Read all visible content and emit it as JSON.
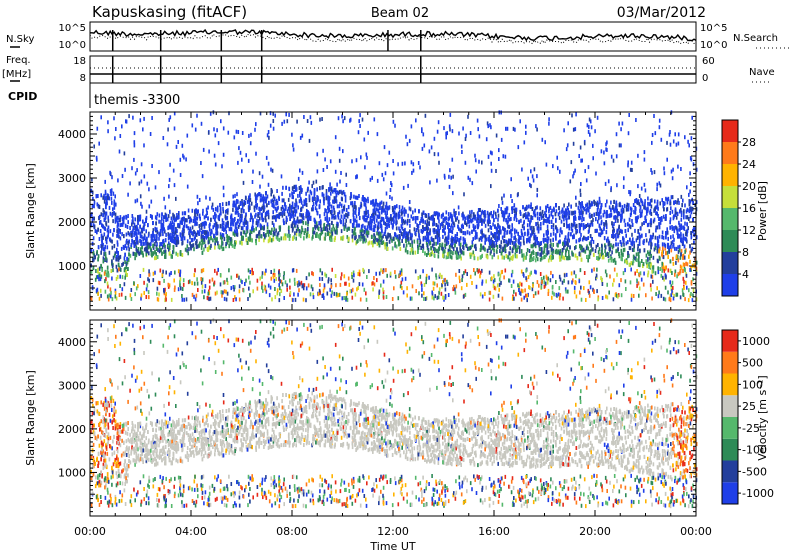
{
  "header": {
    "station": "Kapuskasing (fitACF)",
    "beam": "Beam 02",
    "date": "03/Mar/2012"
  },
  "left_labels": {
    "nsky": "N.Sky",
    "freq": "Freq.",
    "mhz": "[MHz]",
    "cpid": "CPID"
  },
  "right_labels": {
    "nsearch": "N.Search",
    "nave": "Nave"
  },
  "cpid_value": "themis -3300",
  "chart_data": [
    {
      "type": "line",
      "panel": "noise",
      "y_ticks_left": [
        "10^5",
        "10^0"
      ],
      "y_ticks_right": [
        "10^5",
        "10^0"
      ],
      "series": [
        {
          "name": "N.Sky",
          "style": "solid"
        },
        {
          "name": "N.Search",
          "style": "dotted"
        }
      ]
    },
    {
      "type": "line",
      "panel": "frequency",
      "y_ticks_left": [
        "18",
        "8"
      ],
      "y_ticks_right": [
        "60",
        "0"
      ],
      "series": [
        {
          "name": "Freq.",
          "style": "solid"
        },
        {
          "name": "Nave",
          "style": "dotted"
        }
      ]
    },
    {
      "type": "heatmap",
      "panel": "power",
      "ylabel": "Slant Range [km]",
      "y_ticks": [
        "1000",
        "2000",
        "3000",
        "4000"
      ],
      "ylim": [
        0,
        4500
      ],
      "colorbar": {
        "label": "Power [dB]",
        "ticks": [
          "4",
          "8",
          "12",
          "16",
          "20",
          "24",
          "28"
        ],
        "colors": [
          "#1f3fe8",
          "#233f9c",
          "#2e8b57",
          "#55b86c",
          "#c6df3a",
          "#ffb300",
          "#ff7a1a",
          "#e62a1a"
        ]
      }
    },
    {
      "type": "heatmap",
      "panel": "velocity",
      "ylabel": "Slant Range [km]",
      "y_ticks": [
        "1000",
        "2000",
        "3000",
        "4000"
      ],
      "ylim": [
        0,
        4500
      ],
      "colorbar": {
        "label": "Velocity [m s⁻¹]",
        "ticks": [
          "1000",
          "500",
          "100",
          "25",
          "-25",
          "-100",
          "-500",
          "-1000"
        ],
        "colors": [
          "#1f3fe8",
          "#233f9c",
          "#2e8b57",
          "#55b86c",
          "#c8c8c0",
          "#ffb300",
          "#ff7a1a",
          "#e62a1a"
        ]
      }
    }
  ],
  "x_axis": {
    "label": "Time UT",
    "ticks": [
      "00:00",
      "04:00",
      "08:00",
      "12:00",
      "16:00",
      "20:00",
      "00:00"
    ],
    "xlim_hours": [
      0,
      24
    ]
  }
}
